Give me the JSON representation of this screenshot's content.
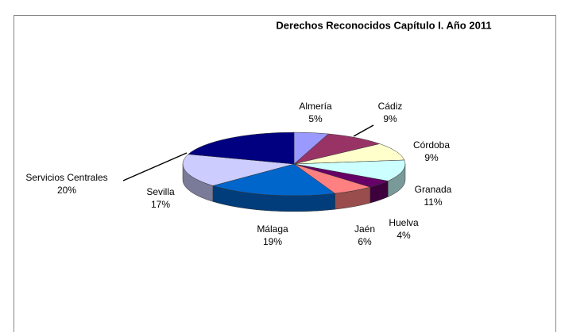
{
  "chart_data": {
    "type": "pie3d",
    "title": "Derechos Reconocidos Capítulo I. Año 2011",
    "categories": [
      "Almería",
      "Cádiz",
      "Córdoba",
      "Granada",
      "Huelva",
      "Jaén",
      "Málaga",
      "Sevilla",
      "Servicios Centrales"
    ],
    "values": [
      5,
      9,
      9,
      11,
      4,
      6,
      19,
      17,
      20
    ],
    "value_labels": [
      "5%",
      "9%",
      "9%",
      "11%",
      "4%",
      "6%",
      "19%",
      "17%",
      "20%"
    ],
    "colors": [
      "#9999ff",
      "#993366",
      "#ffffcc",
      "#ccffff",
      "#660066",
      "#ff8080",
      "#0066cc",
      "#ccccff",
      "#000080"
    ]
  }
}
